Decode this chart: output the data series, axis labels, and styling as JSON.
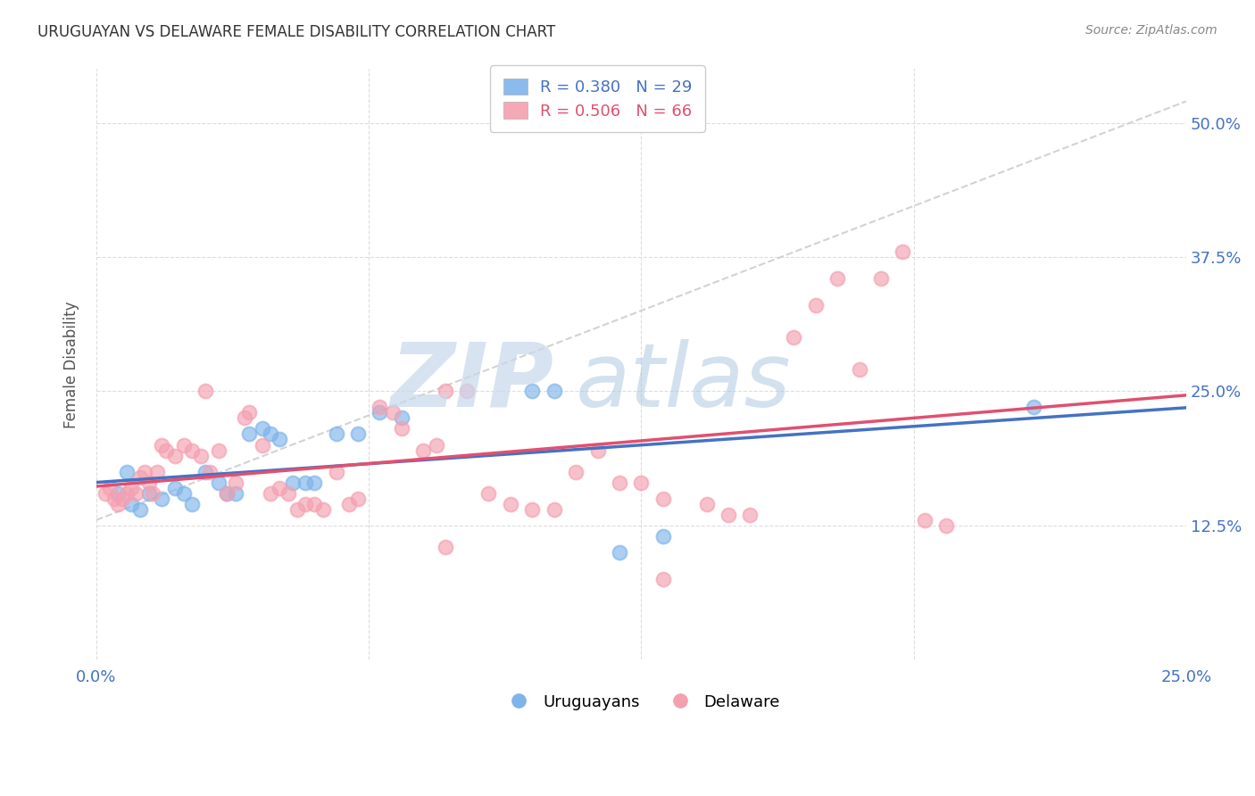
{
  "title": "URUGUAYAN VS DELAWARE FEMALE DISABILITY CORRELATION CHART",
  "source": "Source: ZipAtlas.com",
  "ylabel_label": "Female Disability",
  "legend_blue_label": "R = 0.380   N = 29",
  "legend_pink_label": "R = 0.506   N = 66",
  "legend_labels": [
    "Uruguayans",
    "Delaware"
  ],
  "blue_color": "#7EB4EA",
  "pink_color": "#F4A0B0",
  "blue_line_color": "#4472C4",
  "pink_line_color": "#E05070",
  "diag_line_color": "#C8C8C8",
  "uruguayan_points": [
    [
      0.005,
      0.155
    ],
    [
      0.007,
      0.175
    ],
    [
      0.008,
      0.145
    ],
    [
      0.01,
      0.14
    ],
    [
      0.012,
      0.155
    ],
    [
      0.015,
      0.15
    ],
    [
      0.018,
      0.16
    ],
    [
      0.02,
      0.155
    ],
    [
      0.022,
      0.145
    ],
    [
      0.025,
      0.175
    ],
    [
      0.028,
      0.165
    ],
    [
      0.03,
      0.155
    ],
    [
      0.032,
      0.155
    ],
    [
      0.035,
      0.21
    ],
    [
      0.038,
      0.215
    ],
    [
      0.04,
      0.21
    ],
    [
      0.042,
      0.205
    ],
    [
      0.045,
      0.165
    ],
    [
      0.048,
      0.165
    ],
    [
      0.05,
      0.165
    ],
    [
      0.055,
      0.21
    ],
    [
      0.06,
      0.21
    ],
    [
      0.065,
      0.23
    ],
    [
      0.07,
      0.225
    ],
    [
      0.1,
      0.25
    ],
    [
      0.105,
      0.25
    ],
    [
      0.12,
      0.1
    ],
    [
      0.13,
      0.115
    ],
    [
      0.215,
      0.235
    ]
  ],
  "delaware_points": [
    [
      0.002,
      0.155
    ],
    [
      0.003,
      0.16
    ],
    [
      0.004,
      0.15
    ],
    [
      0.005,
      0.145
    ],
    [
      0.006,
      0.15
    ],
    [
      0.007,
      0.155
    ],
    [
      0.008,
      0.16
    ],
    [
      0.009,
      0.155
    ],
    [
      0.01,
      0.17
    ],
    [
      0.011,
      0.175
    ],
    [
      0.012,
      0.165
    ],
    [
      0.013,
      0.155
    ],
    [
      0.014,
      0.175
    ],
    [
      0.015,
      0.2
    ],
    [
      0.016,
      0.195
    ],
    [
      0.018,
      0.19
    ],
    [
      0.02,
      0.2
    ],
    [
      0.022,
      0.195
    ],
    [
      0.024,
      0.19
    ],
    [
      0.025,
      0.25
    ],
    [
      0.026,
      0.175
    ],
    [
      0.028,
      0.195
    ],
    [
      0.03,
      0.155
    ],
    [
      0.032,
      0.165
    ],
    [
      0.034,
      0.225
    ],
    [
      0.035,
      0.23
    ],
    [
      0.038,
      0.2
    ],
    [
      0.04,
      0.155
    ],
    [
      0.042,
      0.16
    ],
    [
      0.044,
      0.155
    ],
    [
      0.046,
      0.14
    ],
    [
      0.048,
      0.145
    ],
    [
      0.05,
      0.145
    ],
    [
      0.052,
      0.14
    ],
    [
      0.055,
      0.175
    ],
    [
      0.058,
      0.145
    ],
    [
      0.06,
      0.15
    ],
    [
      0.065,
      0.235
    ],
    [
      0.068,
      0.23
    ],
    [
      0.07,
      0.215
    ],
    [
      0.075,
      0.195
    ],
    [
      0.078,
      0.2
    ],
    [
      0.08,
      0.25
    ],
    [
      0.085,
      0.25
    ],
    [
      0.09,
      0.155
    ],
    [
      0.095,
      0.145
    ],
    [
      0.1,
      0.14
    ],
    [
      0.105,
      0.14
    ],
    [
      0.11,
      0.175
    ],
    [
      0.115,
      0.195
    ],
    [
      0.12,
      0.165
    ],
    [
      0.125,
      0.165
    ],
    [
      0.13,
      0.15
    ],
    [
      0.14,
      0.145
    ],
    [
      0.145,
      0.135
    ],
    [
      0.15,
      0.135
    ],
    [
      0.16,
      0.3
    ],
    [
      0.165,
      0.33
    ],
    [
      0.17,
      0.355
    ],
    [
      0.175,
      0.27
    ],
    [
      0.18,
      0.355
    ],
    [
      0.185,
      0.38
    ],
    [
      0.19,
      0.13
    ],
    [
      0.195,
      0.125
    ],
    [
      0.08,
      0.105
    ],
    [
      0.13,
      0.075
    ]
  ],
  "xlim": [
    0.0,
    0.25
  ],
  "ylim": [
    0.0,
    0.55
  ],
  "xticks": [
    0.0,
    0.0625,
    0.125,
    0.1875,
    0.25
  ],
  "xtick_labels": [
    "0.0%",
    "",
    "",
    "",
    "25.0%"
  ],
  "yticks": [
    0.0,
    0.125,
    0.25,
    0.375,
    0.5
  ],
  "ytick_labels": [
    "",
    "12.5%",
    "25.0%",
    "37.5%",
    "50.0%"
  ],
  "watermark_zip": "ZIP",
  "watermark_atlas": "atlas"
}
